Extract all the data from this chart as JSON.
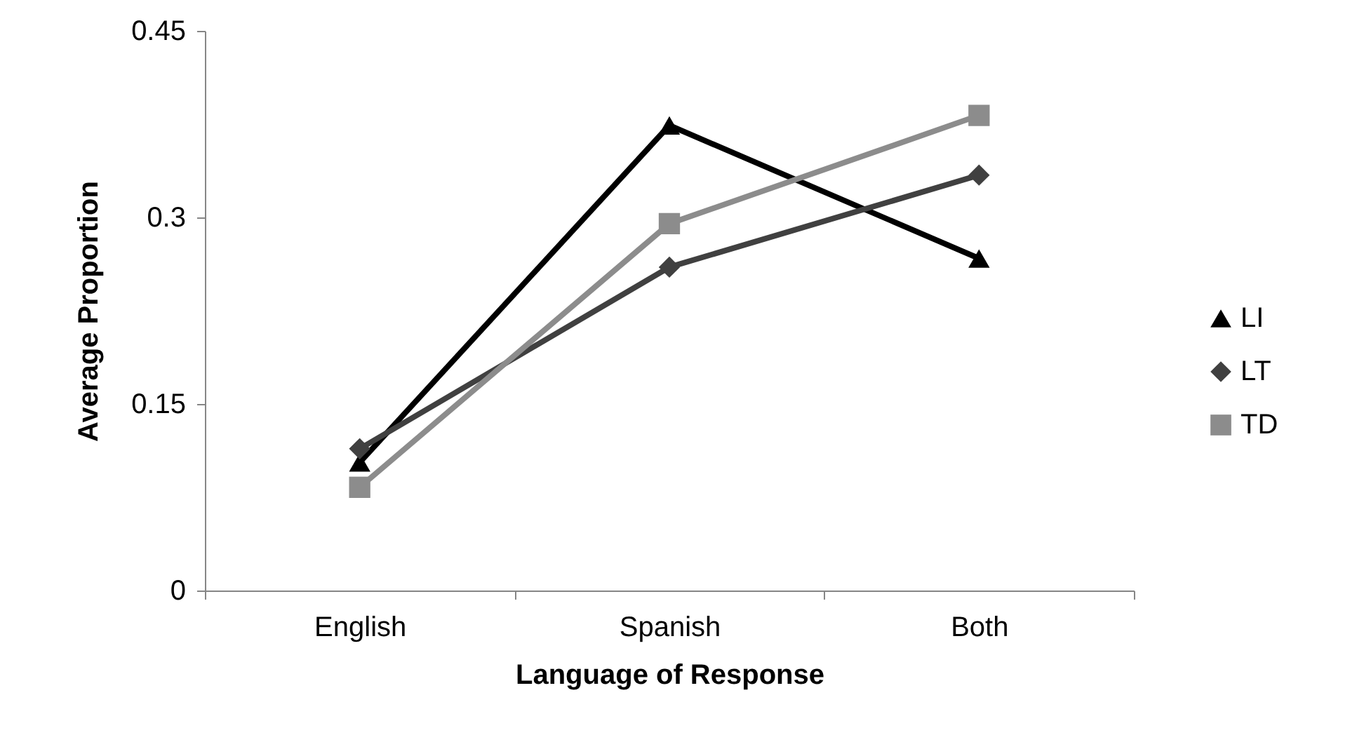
{
  "chart_data": {
    "type": "line",
    "xlabel": "Language of Response",
    "ylabel": "Average Proportion",
    "categories": [
      "English",
      "Spanish",
      "Both"
    ],
    "series": [
      {
        "name": "LI",
        "color": "#000000",
        "marker": "triangle",
        "values": [
          0.103,
          0.374,
          0.267
        ]
      },
      {
        "name": "LT",
        "color": "#404040",
        "marker": "diamond",
        "values": [
          0.114,
          0.26,
          0.334
        ]
      },
      {
        "name": "TD",
        "color": "#8c8c8c",
        "marker": "square",
        "values": [
          0.083,
          0.295,
          0.382
        ]
      }
    ],
    "ylim": [
      0,
      0.45
    ],
    "yticks": [
      0,
      0.15,
      0.3,
      0.45
    ],
    "grid": false,
    "legend": "right",
    "line_style": "solid"
  }
}
